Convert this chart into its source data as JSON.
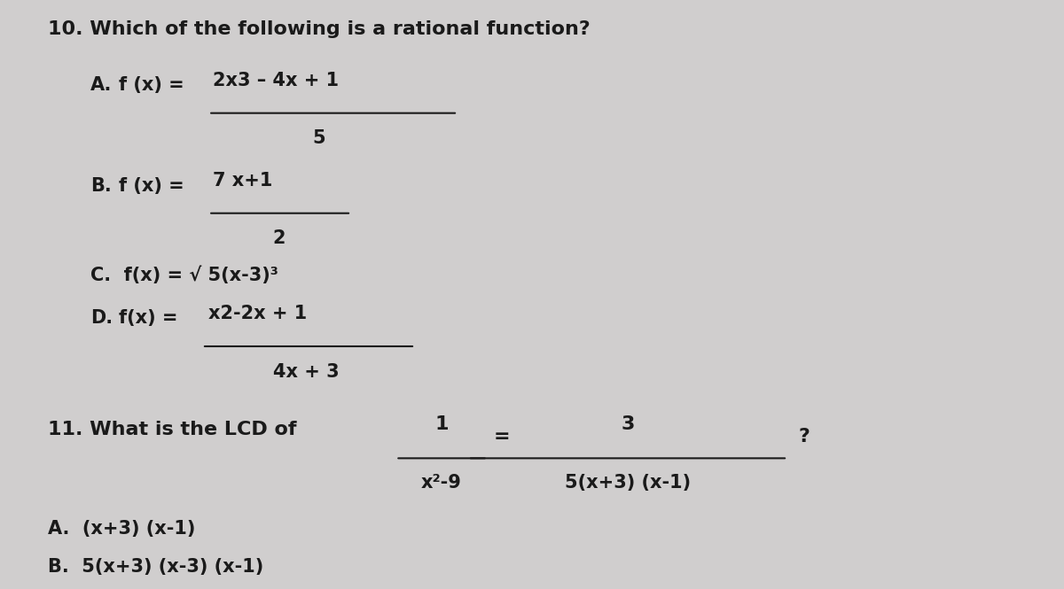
{
  "bg_color": "#d0cece",
  "text_color": "#1a1a1a",
  "figsize": [
    12.0,
    6.65
  ],
  "dpi": 100,
  "q10_title": "10. Which of the following is a rational function?",
  "q10_A_num": "2x3 – 4x + 1",
  "q10_A_den": "5",
  "q10_B_num": "7 x+1",
  "q10_B_den": "2",
  "q10_C": "C.  f(x) = √ 5(x-3)³",
  "q10_D_num": "x2-2x + 1",
  "q10_D_den": "4x + 3",
  "q11_title_left": "11. What is the LCD of",
  "q11_num1": "1",
  "q11_den1": "x²-9",
  "q11_eq": "=",
  "q11_num2": "3",
  "q11_den2": "5(x+3) (x-1)",
  "q11_q": "?",
  "q11_A": "A.  (x+3) (x-1)",
  "q11_B": "B.  5(x+3) (x-3) (x-1)"
}
